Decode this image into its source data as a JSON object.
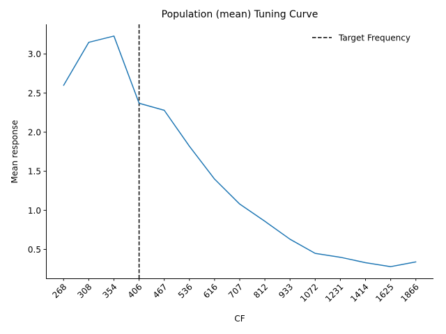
{
  "chart_data": {
    "type": "line",
    "title": "Population (mean) Tuning Curve",
    "xlabel": "CF",
    "ylabel": "Mean response",
    "categories": [
      "268",
      "308",
      "354",
      "406",
      "467",
      "536",
      "616",
      "707",
      "812",
      "933",
      "1072",
      "1231",
      "1414",
      "1625",
      "1866"
    ],
    "series": [
      {
        "name": "Mean response",
        "color": "#1f77b4",
        "values": [
          2.6,
          3.15,
          3.23,
          2.37,
          2.28,
          1.82,
          1.4,
          1.08,
          0.86,
          0.63,
          0.45,
          0.4,
          0.33,
          0.28,
          0.34
        ]
      }
    ],
    "yticks": [
      "0.5",
      "1.0",
      "1.5",
      "2.0",
      "2.5",
      "3.0"
    ],
    "ylim": [
      0.13,
      3.38
    ],
    "xlim": [
      -0.7,
      14.7
    ],
    "grid": false,
    "vline": {
      "x_category": "406",
      "label": "Target Frequency",
      "color": "#000000",
      "style": "dashed"
    },
    "legend": {
      "position": "top-right",
      "entries": [
        "Target Frequency"
      ]
    }
  }
}
